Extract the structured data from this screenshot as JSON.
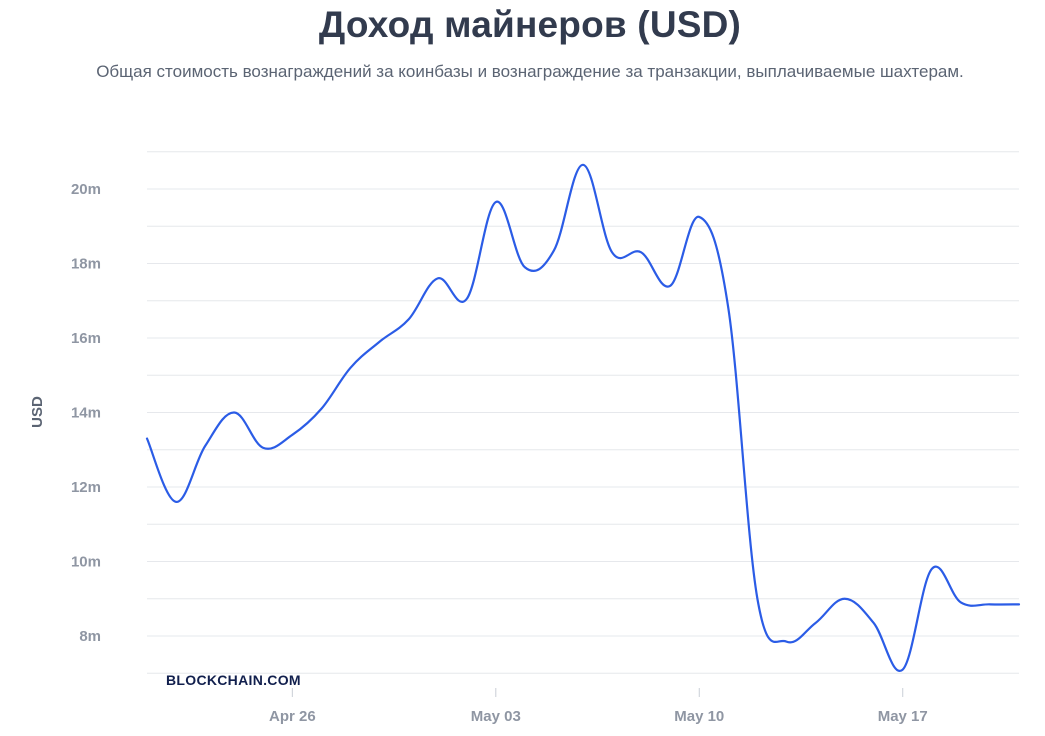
{
  "chart_data": {
    "type": "line",
    "title": "Доход майнеров (USD)",
    "subtitle": "Общая стоимость вознаграждений за коинбазы и вознаграждение за транзакции, выплачиваемые шахтерам.",
    "ylabel": "USD",
    "xlabel": "",
    "ylim": [
      7,
      21
    ],
    "y_ticks": [
      8,
      10,
      12,
      14,
      16,
      18,
      20
    ],
    "y_tick_labels": [
      "8m",
      "10m",
      "12m",
      "14m",
      "16m",
      "18m",
      "20m"
    ],
    "x_range": [
      0,
      30
    ],
    "x_ticks": [
      5,
      12,
      19,
      26
    ],
    "x_tick_labels": [
      "Apr 26",
      "May 03",
      "May 10",
      "May 17"
    ],
    "grid": true,
    "legend": "none",
    "series": [
      {
        "color": "#2b5ce6",
        "x": [
          0,
          1,
          2,
          3,
          4,
          5,
          6,
          7,
          8,
          9,
          10,
          11,
          12,
          13,
          14,
          15,
          16,
          17,
          18,
          19,
          20,
          21,
          22,
          23,
          24,
          25,
          26,
          27,
          28,
          29,
          30
        ],
        "values": [
          13.3,
          11.6,
          13.1,
          14.0,
          13.05,
          13.4,
          14.1,
          15.2,
          15.9,
          16.5,
          17.6,
          17.05,
          19.65,
          17.9,
          18.35,
          20.65,
          18.3,
          18.3,
          17.4,
          19.25,
          16.8,
          9.0,
          7.85,
          8.35,
          9.0,
          8.35,
          7.1,
          9.8,
          8.9,
          8.85,
          8.85
        ]
      }
    ]
  },
  "branding": {
    "text": "BLOCKCHAIN.COM"
  }
}
